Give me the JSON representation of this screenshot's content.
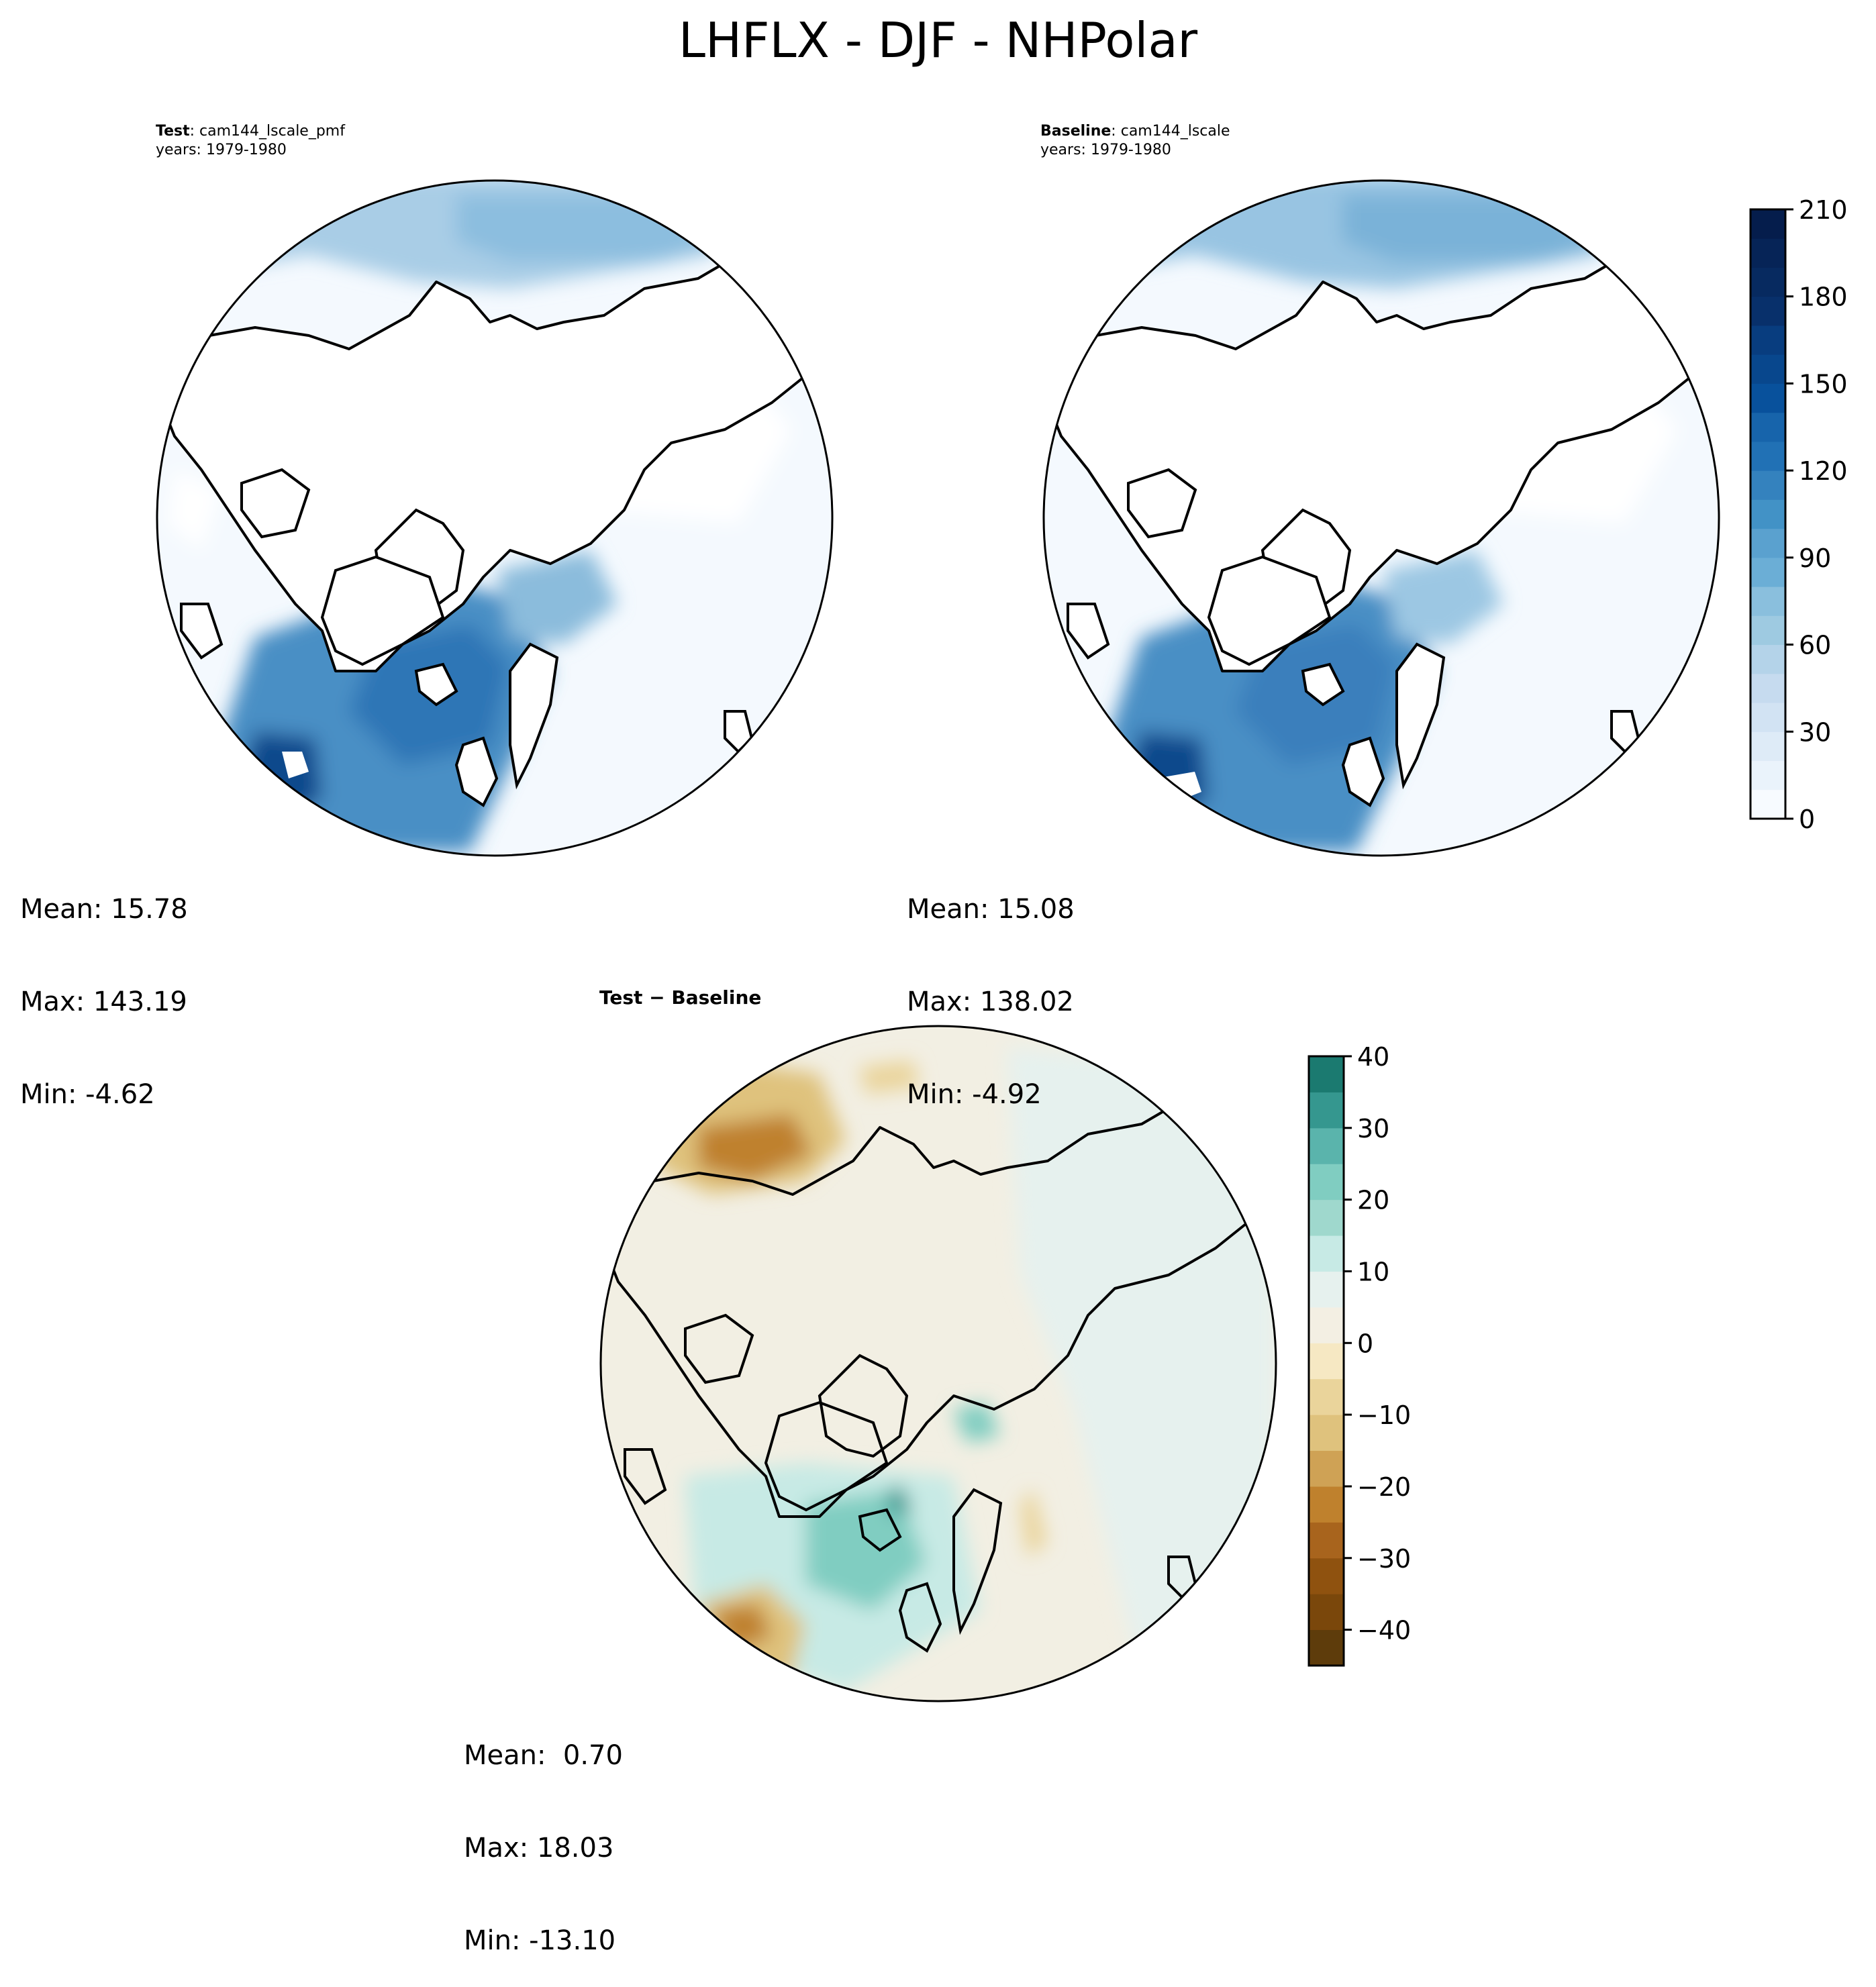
{
  "title": "LHFLX - DJF - NHPolar",
  "panels": {
    "test": {
      "label_bold": "Test",
      "label_sep": ":",
      "label_name": "cam144_lscale_pmf",
      "years": "years: 1979-1980",
      "stats": {
        "mean": "Mean: 15.78",
        "max": "Max: 143.19",
        "min": "Min: -4.62"
      }
    },
    "baseline": {
      "label_bold": "Baseline",
      "label_sep": ":",
      "label_name": "cam144_lscale",
      "years": "years: 1979-1980",
      "stats": {
        "mean": "Mean: 15.08",
        "max": "Max: 138.02",
        "min": "Min: -4.92"
      }
    },
    "diff": {
      "title": "Test − Baseline",
      "stats": {
        "mean": "Mean:  0.70",
        "max": "Max: 18.03",
        "min": "Min: -13.10"
      }
    }
  },
  "chart_data": [
    {
      "type": "heatmap",
      "projection": "north polar stereographic",
      "variable": "LHFLX",
      "season": "DJF",
      "region": "NHPolar",
      "title": "Test: cam144_lscale_pmf",
      "subtitle": "years: 1979-1980",
      "mean": 15.78,
      "max": 143.19,
      "min": -4.62,
      "colormap": "Blues",
      "value_range": [
        0,
        210
      ]
    },
    {
      "type": "heatmap",
      "projection": "north polar stereographic",
      "variable": "LHFLX",
      "season": "DJF",
      "region": "NHPolar",
      "title": "Baseline: cam144_lscale",
      "subtitle": "years: 1979-1980",
      "mean": 15.08,
      "max": 138.02,
      "min": -4.92,
      "colormap": "Blues",
      "value_range": [
        0,
        210
      ]
    },
    {
      "type": "heatmap",
      "projection": "north polar stereographic",
      "variable": "LHFLX",
      "title": "Test − Baseline",
      "mean": 0.7,
      "max": 18.03,
      "min": -13.1,
      "colormap": "BrBG",
      "value_range": [
        -45,
        40
      ]
    }
  ],
  "colorbars": {
    "main": {
      "min": 0,
      "max": 210,
      "ticks": [
        0,
        30,
        60,
        90,
        120,
        150,
        180,
        210
      ],
      "tick_labels": [
        "0",
        "30",
        "60",
        "90",
        "120",
        "150",
        "180",
        "210"
      ],
      "levels": [
        0,
        10,
        20,
        30,
        40,
        50,
        60,
        70,
        80,
        90,
        100,
        110,
        120,
        130,
        140,
        150,
        160,
        170,
        180,
        190,
        200,
        210
      ],
      "colors": [
        "#f7fbff",
        "#eaf3fb",
        "#deebf7",
        "#d2e3f3",
        "#c6dbef",
        "#b4d3e9",
        "#9ecae1",
        "#8abfdd",
        "#6baed6",
        "#5aa1cf",
        "#4292c6",
        "#3482be",
        "#2171b5",
        "#1764ab",
        "#08519c",
        "#08478d",
        "#083d7f",
        "#08306b",
        "#072a60",
        "#062457",
        "#051d4c"
      ]
    },
    "diff": {
      "min": -45,
      "max": 40,
      "ticks": [
        -40,
        -30,
        -20,
        -10,
        0,
        10,
        20,
        30,
        40
      ],
      "tick_labels": [
        "−40",
        "−30",
        "−20",
        "−10",
        "0",
        "10",
        "20",
        "30",
        "40"
      ],
      "levels": [
        -45,
        -40,
        -35,
        -30,
        -25,
        -20,
        -15,
        -10,
        -5,
        0,
        5,
        10,
        15,
        20,
        25,
        30,
        35,
        40
      ],
      "colors": [
        "#5e3c0b",
        "#7a470b",
        "#8f520f",
        "#a8641d",
        "#bf812d",
        "#cfa255",
        "#dfc27d",
        "#ead49b",
        "#f6e8c3",
        "#f3efe3",
        "#e6f1ee",
        "#c7eae5",
        "#9fd8cd",
        "#80cdc1",
        "#5ab4ac",
        "#35978f",
        "#1b7a70",
        "#01665e"
      ]
    }
  }
}
